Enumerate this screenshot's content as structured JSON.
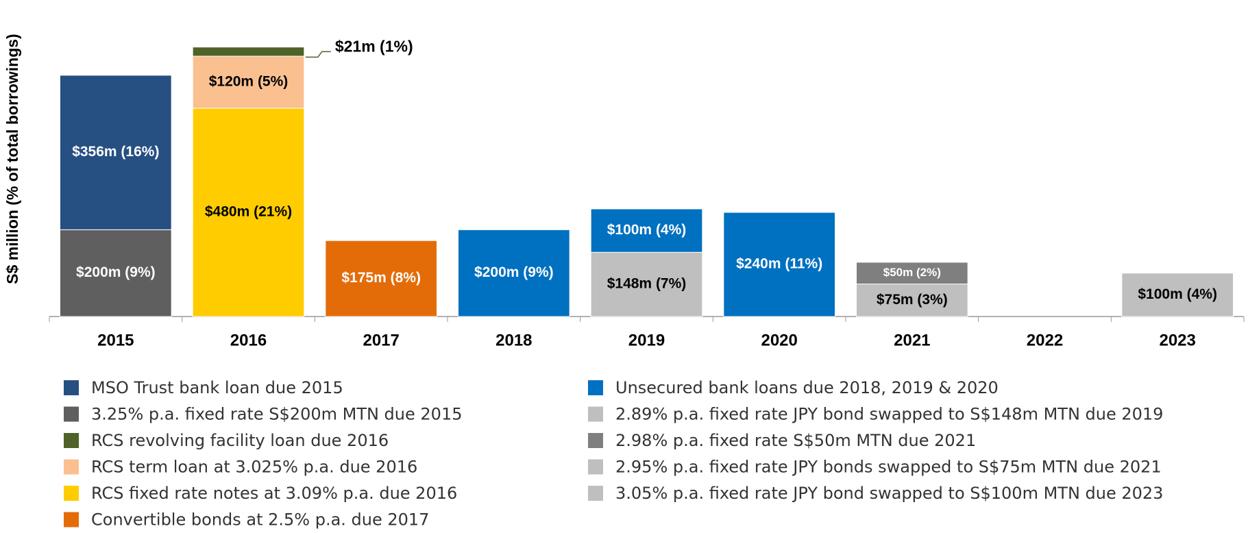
{
  "chart_data": {
    "type": "bar",
    "stacked": true,
    "y_label": "S$ million (% of total borrowings)",
    "categories": [
      "2015",
      "2016",
      "2017",
      "2018",
      "2019",
      "2020",
      "2021",
      "2022",
      "2023"
    ],
    "ylim": [
      0,
      720
    ],
    "series": [
      {
        "name": "MSO Trust bank loan due 2015",
        "color": "#264f82",
        "values": [
          356,
          null,
          null,
          null,
          null,
          null,
          null,
          null,
          null
        ],
        "value_labels": [
          "$356m (16%)",
          null,
          null,
          null,
          null,
          null,
          null,
          null,
          null
        ]
      },
      {
        "name": "3.25% p.a. fixed rate S$200m MTN due 2015",
        "color": "#5f5f5f",
        "values": [
          200,
          null,
          null,
          null,
          null,
          null,
          null,
          null,
          null
        ],
        "value_labels": [
          "$200m (9%)",
          null,
          null,
          null,
          null,
          null,
          null,
          null,
          null
        ]
      },
      {
        "name": "RCS revolving facility loan due 2016",
        "color": "#4f6228",
        "values": [
          null,
          21,
          null,
          null,
          null,
          null,
          null,
          null,
          null
        ],
        "value_labels": [
          null,
          "$21m (1%)",
          null,
          null,
          null,
          null,
          null,
          null,
          null
        ]
      },
      {
        "name": "RCS term loan at 3.025% p.a. due 2016",
        "color": "#fac090",
        "values": [
          null,
          120,
          null,
          null,
          null,
          null,
          null,
          null,
          null
        ],
        "value_labels": [
          null,
          "$120m (5%)",
          null,
          null,
          null,
          null,
          null,
          null,
          null
        ]
      },
      {
        "name": "RCS fixed rate notes at 3.09% p.a. due 2016",
        "color": "#ffcc00",
        "values": [
          null,
          480,
          null,
          null,
          null,
          null,
          null,
          null,
          null
        ],
        "value_labels": [
          null,
          "$480m (21%)",
          null,
          null,
          null,
          null,
          null,
          null,
          null
        ]
      },
      {
        "name": "Convertible bonds at 2.5% p.a. due 2017",
        "color": "#e36c09",
        "values": [
          null,
          null,
          175,
          null,
          null,
          null,
          null,
          null,
          null
        ],
        "value_labels": [
          null,
          null,
          "$175m (8%)",
          null,
          null,
          null,
          null,
          null,
          null
        ]
      },
      {
        "name": "Unsecured bank loans due 2018, 2019 & 2020",
        "color": "#0070c0",
        "values": [
          null,
          null,
          null,
          200,
          100,
          240,
          null,
          null,
          null
        ],
        "value_labels": [
          null,
          null,
          null,
          "$200m (9%)",
          "$100m (4%)",
          "$240m (11%)",
          null,
          null,
          null
        ]
      },
      {
        "name": "2.89% p.a. fixed rate JPY bond swapped to S$148m MTN due 2019",
        "color": "#bfbfbf",
        "values": [
          null,
          null,
          null,
          null,
          148,
          null,
          null,
          null,
          null
        ],
        "value_labels": [
          null,
          null,
          null,
          null,
          "$148m (7%)",
          null,
          null,
          null,
          null
        ]
      },
      {
        "name": "2.98% p.a. fixed rate S$50m MTN due 2021",
        "color": "#7f7f7f",
        "values": [
          null,
          null,
          null,
          null,
          null,
          null,
          50,
          null,
          null
        ],
        "value_labels": [
          null,
          null,
          null,
          null,
          null,
          null,
          "$50m (2%)",
          null,
          null
        ]
      },
      {
        "name": "2.95% p.a. fixed rate JPY bonds swapped to S$75m MTN due 2021",
        "color": "#bfbfbf",
        "values": [
          null,
          null,
          null,
          null,
          null,
          null,
          75,
          null,
          null
        ],
        "value_labels": [
          null,
          null,
          null,
          null,
          null,
          null,
          "$75m (3%)",
          null,
          null
        ]
      },
      {
        "name": "3.05% p.a. fixed rate JPY bond swapped to S$100m MTN due 2023",
        "color": "#bfbfbf",
        "values": [
          null,
          null,
          null,
          null,
          null,
          null,
          null,
          null,
          100
        ],
        "value_labels": [
          null,
          null,
          null,
          null,
          null,
          null,
          null,
          null,
          "$100m (4%)"
        ]
      }
    ]
  }
}
